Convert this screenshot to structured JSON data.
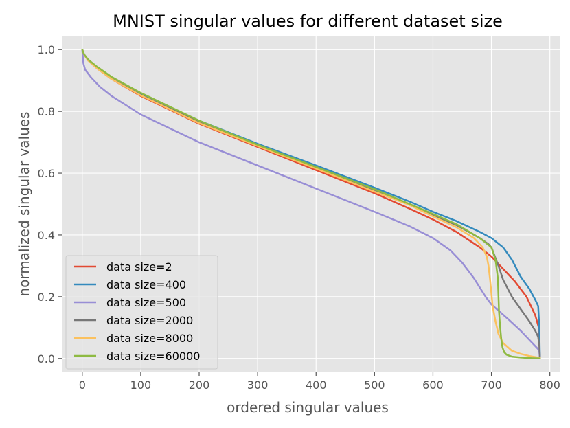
{
  "chart_data": {
    "type": "line",
    "title": "MNIST singular values for different dataset size",
    "xlabel": "ordered singular values",
    "ylabel": "normalized singular values",
    "xlim": [
      -35,
      818
    ],
    "ylim": [
      -0.045,
      1.045
    ],
    "xticks": [
      0,
      100,
      200,
      300,
      400,
      500,
      600,
      700,
      800
    ],
    "yticks": [
      0.0,
      0.2,
      0.4,
      0.6,
      0.8,
      1.0
    ],
    "xtick_labels": [
      "0",
      "100",
      "200",
      "300",
      "400",
      "500",
      "600",
      "700",
      "800"
    ],
    "ytick_labels": [
      "0.0",
      "0.2",
      "0.4",
      "0.6",
      "0.8",
      "1.0"
    ],
    "grid": true,
    "legend_position": "lower-left",
    "series": [
      {
        "name": "data size=2",
        "color": "#E24A33",
        "x": [
          0,
          3,
          10,
          25,
          50,
          100,
          200,
          300,
          400,
          500,
          560,
          600,
          640,
          680,
          700,
          720,
          740,
          760,
          775,
          781,
          782,
          783
        ],
        "y": [
          1.0,
          0.985,
          0.965,
          0.94,
          0.905,
          0.85,
          0.76,
          0.685,
          0.61,
          0.535,
          0.485,
          0.45,
          0.41,
          0.36,
          0.33,
          0.29,
          0.25,
          0.2,
          0.14,
          0.1,
          0.05,
          0.0
        ]
      },
      {
        "name": "data size=400",
        "color": "#348ABD",
        "x": [
          0,
          3,
          10,
          25,
          50,
          100,
          200,
          300,
          400,
          500,
          560,
          600,
          640,
          680,
          700,
          720,
          735,
          750,
          765,
          775,
          780,
          782,
          783
        ],
        "y": [
          1.0,
          0.985,
          0.967,
          0.943,
          0.91,
          0.857,
          0.77,
          0.695,
          0.625,
          0.553,
          0.508,
          0.475,
          0.445,
          0.41,
          0.39,
          0.36,
          0.32,
          0.265,
          0.225,
          0.19,
          0.17,
          0.1,
          0.0
        ]
      },
      {
        "name": "data size=500",
        "color": "#988ED5",
        "x": [
          0,
          2,
          5,
          15,
          30,
          50,
          100,
          200,
          300,
          400,
          500,
          560,
          600,
          630,
          650,
          670,
          680,
          690,
          700,
          715,
          730,
          750,
          765,
          775,
          780,
          782,
          783
        ],
        "y": [
          1.0,
          0.955,
          0.935,
          0.91,
          0.88,
          0.85,
          0.79,
          0.7,
          0.625,
          0.55,
          0.475,
          0.428,
          0.39,
          0.35,
          0.31,
          0.26,
          0.23,
          0.2,
          0.175,
          0.15,
          0.125,
          0.09,
          0.06,
          0.04,
          0.03,
          0.02,
          0.0
        ]
      },
      {
        "name": "data size=2000",
        "color": "#777777",
        "x": [
          0,
          3,
          10,
          25,
          50,
          100,
          200,
          300,
          400,
          500,
          560,
          600,
          640,
          680,
          695,
          700,
          705,
          712,
          720,
          735,
          750,
          765,
          775,
          780,
          782,
          783
        ],
        "y": [
          1.0,
          0.985,
          0.966,
          0.941,
          0.907,
          0.853,
          0.765,
          0.69,
          0.618,
          0.545,
          0.5,
          0.465,
          0.432,
          0.39,
          0.37,
          0.36,
          0.335,
          0.3,
          0.255,
          0.2,
          0.16,
          0.12,
          0.09,
          0.07,
          0.04,
          0.0
        ]
      },
      {
        "name": "data size=8000",
        "color": "#FBC15E",
        "x": [
          0,
          3,
          10,
          25,
          50,
          100,
          200,
          300,
          400,
          500,
          560,
          600,
          640,
          670,
          685,
          692,
          695,
          698,
          702,
          707,
          712,
          720,
          735,
          750,
          765,
          783
        ],
        "y": [
          1.0,
          0.985,
          0.965,
          0.94,
          0.905,
          0.852,
          0.762,
          0.688,
          0.615,
          0.54,
          0.497,
          0.46,
          0.425,
          0.39,
          0.36,
          0.33,
          0.3,
          0.25,
          0.17,
          0.12,
          0.08,
          0.05,
          0.025,
          0.015,
          0.008,
          0.002
        ]
      },
      {
        "name": "data size=60000",
        "color": "#8EBA42",
        "x": [
          0,
          3,
          10,
          25,
          50,
          100,
          200,
          300,
          400,
          500,
          560,
          600,
          640,
          680,
          700,
          707,
          711,
          713,
          715,
          717,
          719,
          722,
          726,
          735,
          750,
          770,
          783
        ],
        "y": [
          1.0,
          0.985,
          0.968,
          0.945,
          0.912,
          0.86,
          0.77,
          0.692,
          0.62,
          0.548,
          0.5,
          0.468,
          0.435,
          0.39,
          0.36,
          0.32,
          0.26,
          0.15,
          0.1,
          0.06,
          0.035,
          0.02,
          0.012,
          0.006,
          0.003,
          0.001,
          0.0
        ]
      }
    ]
  }
}
